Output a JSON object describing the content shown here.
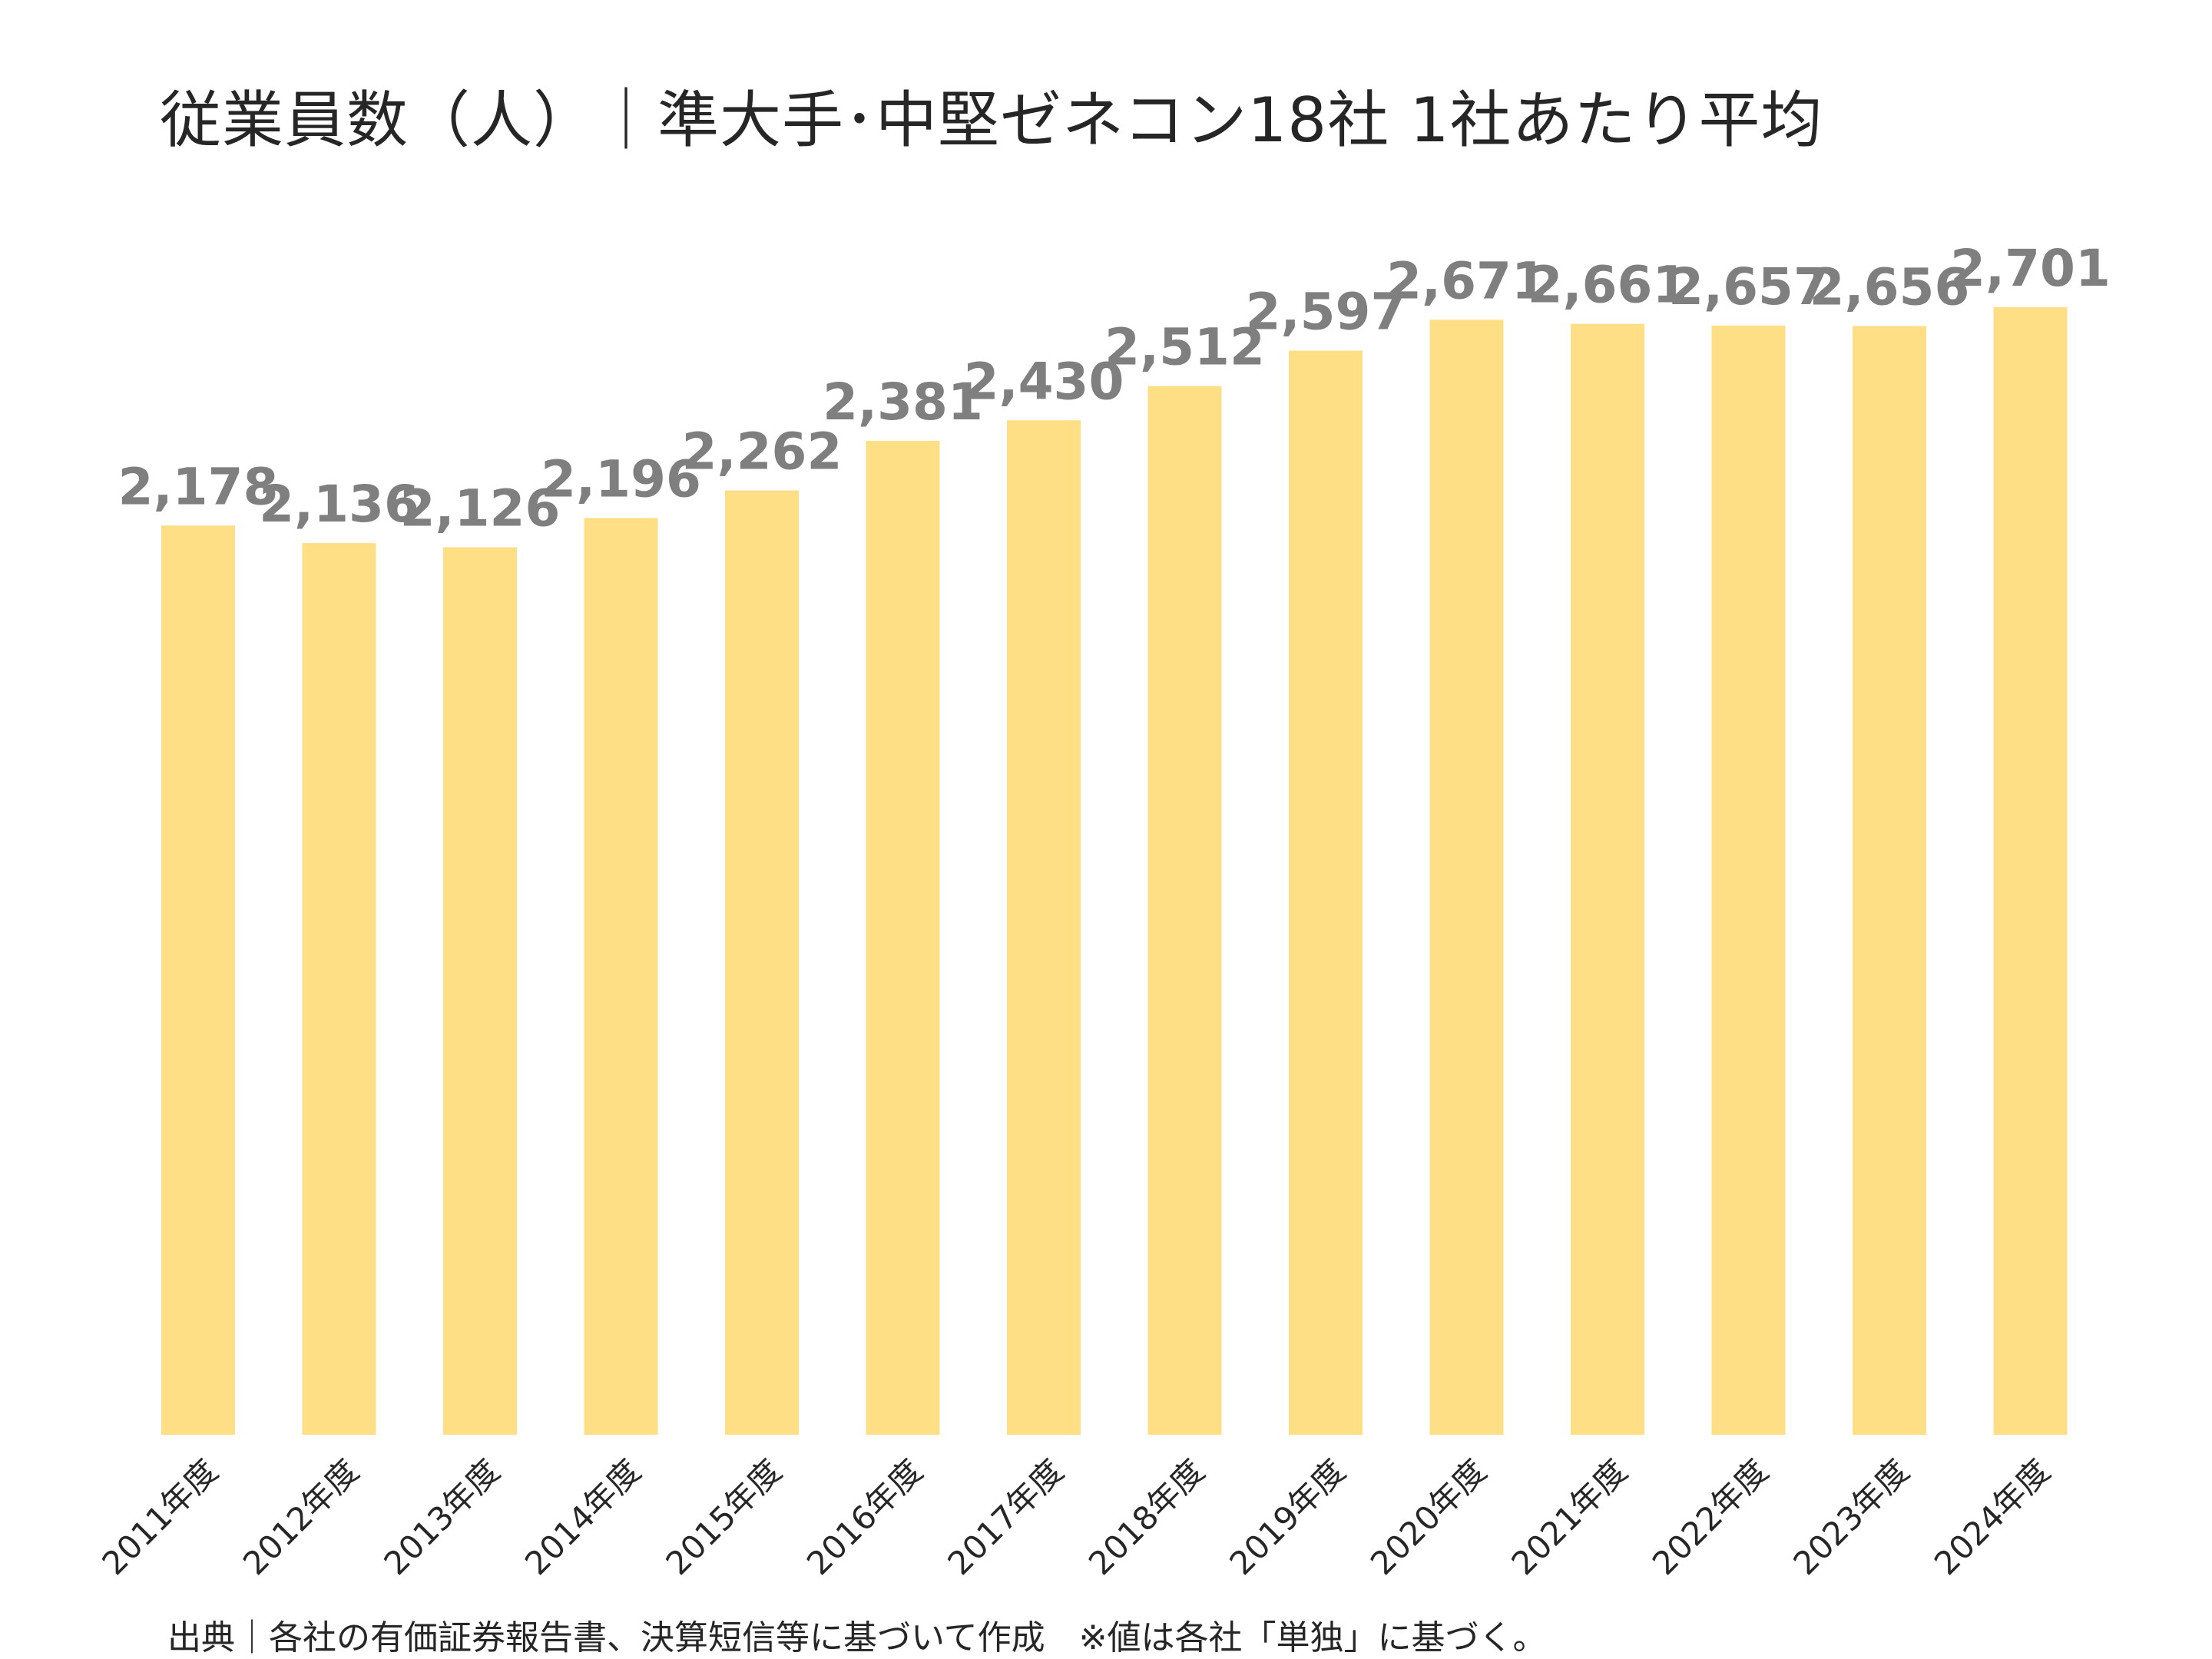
{
  "title": "従業員数（人）｜準大手･中堅ゼネコン18社 1社あたり平均",
  "source_note": "出典｜各社の有価証券報告書、決算短信等に基づいて作成　※値は各社「単独」に基づく。",
  "colors": {
    "bar": "#ffdf85",
    "value_label": "#7f7f7f",
    "text": "#262626"
  },
  "chart_data": {
    "type": "bar",
    "title": "従業員数（人）｜準大手･中堅ゼネコン18社 1社あたり平均",
    "xlabel": "",
    "ylabel": "",
    "ylim": [
      0,
      2701
    ],
    "grid": false,
    "legend": "none",
    "categories": [
      "2011年度",
      "2012年度",
      "2013年度",
      "2014年度",
      "2015年度",
      "2016年度",
      "2017年度",
      "2018年度",
      "2019年度",
      "2020年度",
      "2021年度",
      "2022年度",
      "2023年度",
      "2024年度"
    ],
    "values": [
      2178,
      2136,
      2126,
      2196,
      2262,
      2381,
      2430,
      2512,
      2597,
      2671,
      2661,
      2657,
      2656,
      2701
    ],
    "value_labels": [
      "2,178",
      "2,136",
      "2,126",
      "2,196",
      "2,262",
      "2,381",
      "2,430",
      "2,512",
      "2,597",
      "2,671",
      "2,661",
      "2,657",
      "2,656",
      "2,701"
    ]
  }
}
